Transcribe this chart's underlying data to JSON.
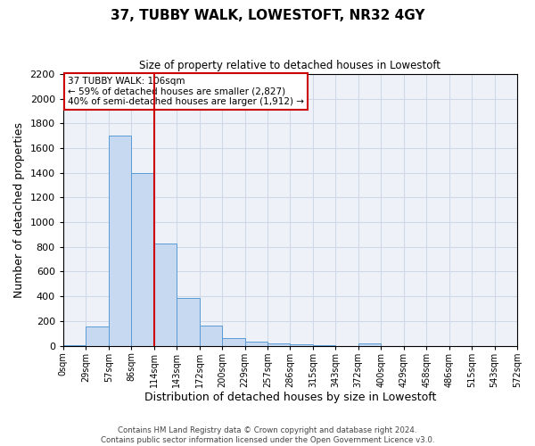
{
  "title": "37, TUBBY WALK, LOWESTOFT, NR32 4GY",
  "subtitle": "Size of property relative to detached houses in Lowestoft",
  "xlabel": "Distribution of detached houses by size in Lowestoft",
  "ylabel": "Number of detached properties",
  "bin_labels": [
    "0sqm",
    "29sqm",
    "57sqm",
    "86sqm",
    "114sqm",
    "143sqm",
    "172sqm",
    "200sqm",
    "229sqm",
    "257sqm",
    "286sqm",
    "315sqm",
    "343sqm",
    "372sqm",
    "400sqm",
    "429sqm",
    "458sqm",
    "486sqm",
    "515sqm",
    "543sqm",
    "572sqm"
  ],
  "bar_heights": [
    5,
    155,
    1700,
    1400,
    830,
    385,
    160,
    65,
    30,
    20,
    10,
    5,
    0,
    20,
    0,
    0,
    0,
    0,
    0,
    0
  ],
  "bar_color": "#c6d9f0",
  "bar_edge_color": "#5b9bd5",
  "grid_color": "#d0d8e8",
  "background_color": "#eef2f8",
  "vline_bin": 4,
  "vline_color": "#cc0000",
  "annotation_text": "37 TUBBY WALK: 106sqm\n← 59% of detached houses are smaller (2,827)\n40% of semi-detached houses are larger (1,912) →",
  "annotation_box_color": "#ffffff",
  "annotation_box_edge": "#cc0000",
  "ylim": [
    0,
    2200
  ],
  "yticks": [
    0,
    200,
    400,
    600,
    800,
    1000,
    1200,
    1400,
    1600,
    1800,
    2000,
    2200
  ],
  "footnote1": "Contains HM Land Registry data © Crown copyright and database right 2024.",
  "footnote2": "Contains public sector information licensed under the Open Government Licence v3.0."
}
